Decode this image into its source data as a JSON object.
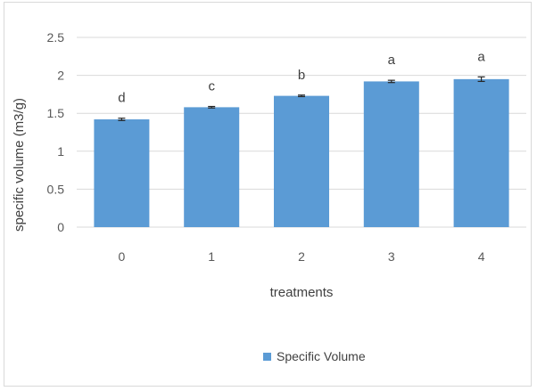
{
  "chart_data": {
    "type": "bar",
    "title": "",
    "xlabel": "treatments",
    "ylabel": "specific volume (m3/g)",
    "categories": [
      "0",
      "1",
      "2",
      "3",
      "4"
    ],
    "series": [
      {
        "name": "Specific Volume",
        "values": [
          1.42,
          1.58,
          1.73,
          1.92,
          1.95
        ],
        "errors": [
          0.015,
          0.01,
          0.01,
          0.015,
          0.03
        ],
        "significance_labels": [
          "d",
          "c",
          "b",
          "a",
          "a"
        ]
      }
    ],
    "ylim": [
      0,
      2.5
    ],
    "yticks": [
      "0",
      "0.5",
      "1",
      "1.5",
      "2",
      "2.5"
    ],
    "ytick_values": [
      0,
      0.5,
      1,
      1.5,
      2,
      2.5
    ],
    "grid": true,
    "legend_position": "bottom",
    "colors": {
      "bar": "#5b9bd5",
      "gridline": "#d9d9d9",
      "error_bar": "#262626"
    }
  }
}
